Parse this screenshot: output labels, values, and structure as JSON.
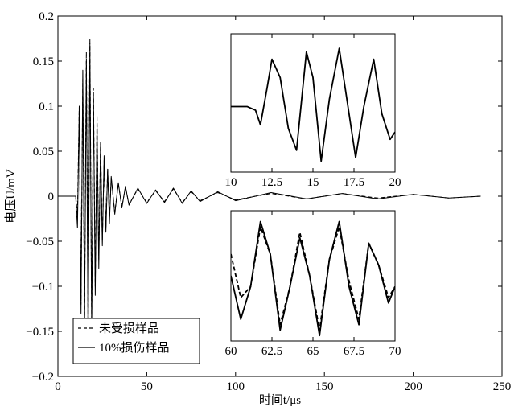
{
  "chart_data": [
    {
      "id": "main",
      "type": "line",
      "xlabel": "时间t/μs",
      "ylabel": "电压U/mV",
      "xlim": [
        0,
        250
      ],
      "ylim": [
        -0.2,
        0.2
      ],
      "xticks": [
        0,
        50,
        100,
        150,
        200,
        250
      ],
      "yticks": [
        -0.2,
        -0.15,
        -0.1,
        -0.05,
        0,
        0.05,
        0.1,
        0.15,
        0.2
      ],
      "xtick_labels": [
        "0",
        "50",
        "100",
        "150",
        "200",
        "250"
      ],
      "ytick_labels": [
        "−0.2",
        "−0.15",
        "−0.1",
        "−0.05",
        "0",
        "0.05",
        "0.1",
        "0.15",
        "0.2"
      ],
      "grid": false,
      "legend_position": "bottom-left",
      "series": [
        {
          "name": "未受损样品",
          "style": "dashed",
          "color": "#000000",
          "x": [
            0,
            10,
            11,
            12,
            13,
            14,
            15,
            16,
            17,
            18,
            19,
            20,
            21,
            22,
            23,
            24,
            25,
            26,
            27,
            28,
            29,
            30,
            32,
            34,
            36,
            38,
            40,
            45,
            50,
            55,
            60,
            65,
            70,
            75,
            80,
            90,
            100,
            120,
            140,
            160,
            180,
            200,
            220,
            238
          ],
          "y": [
            0,
            0,
            -0.02,
            0.1,
            -0.12,
            0.13,
            -0.14,
            0.16,
            -0.15,
            0.175,
            -0.14,
            0.12,
            -0.1,
            0.09,
            -0.07,
            0.06,
            -0.05,
            0.04,
            -0.035,
            0.03,
            -0.025,
            0.02,
            -0.018,
            0.014,
            -0.012,
            0.01,
            -0.009,
            0.008,
            -0.007,
            0.006,
            -0.006,
            0.008,
            -0.007,
            0.005,
            -0.005,
            0.004,
            -0.004,
            0.003,
            -0.003,
            0.003,
            -0.002,
            0.002,
            -0.002,
            0
          ]
        },
        {
          "name": "10%损伤样品",
          "style": "solid",
          "color": "#000000",
          "x": [
            0,
            10,
            11,
            12,
            13,
            14,
            15,
            16,
            17,
            18,
            19,
            20,
            21,
            22,
            23,
            24,
            25,
            26,
            27,
            28,
            29,
            30,
            32,
            34,
            36,
            38,
            40,
            45,
            50,
            55,
            60,
            65,
            70,
            75,
            80,
            90,
            100,
            120,
            140,
            160,
            180,
            200,
            220,
            238
          ],
          "y": [
            0,
            0,
            -0.035,
            0.1,
            -0.13,
            0.14,
            -0.14,
            0.15,
            -0.17,
            0.17,
            -0.15,
            0.11,
            -0.11,
            0.08,
            -0.08,
            0.06,
            -0.055,
            0.045,
            -0.04,
            0.03,
            -0.03,
            0.022,
            -0.02,
            0.015,
            -0.013,
            0.011,
            -0.01,
            0.009,
            -0.008,
            0.007,
            -0.007,
            0.009,
            -0.008,
            0.006,
            -0.006,
            0.005,
            -0.005,
            0.004,
            -0.003,
            0.003,
            -0.003,
            0.002,
            -0.002,
            0
          ]
        }
      ]
    },
    {
      "id": "inset-top",
      "type": "line",
      "xlim": [
        10,
        20
      ],
      "xticks": [
        10,
        12.5,
        15,
        17.5,
        20
      ],
      "xtick_labels": [
        "10",
        "12.5",
        "15",
        "17.5",
        "20"
      ],
      "ylim": [
        -0.18,
        0.2
      ],
      "series": [
        {
          "name": "",
          "style": "solid",
          "color": "#000000",
          "x": [
            10,
            11,
            11.5,
            11.8,
            12.2,
            12.5,
            13.0,
            13.5,
            14.0,
            14.6,
            15.0,
            15.5,
            16.0,
            16.6,
            17.1,
            17.6,
            18.1,
            18.7,
            19.2,
            19.7,
            20
          ],
          "y": [
            0,
            0,
            -0.01,
            -0.05,
            0.05,
            0.13,
            0.08,
            -0.06,
            -0.12,
            0.15,
            0.08,
            -0.15,
            0.02,
            0.16,
            0.01,
            -0.14,
            0.0,
            0.13,
            -0.02,
            -0.09,
            -0.07
          ]
        }
      ]
    },
    {
      "id": "inset-bottom",
      "type": "line",
      "xlim": [
        60,
        70
      ],
      "xticks": [
        60,
        62.5,
        65,
        67.5,
        70
      ],
      "xtick_labels": [
        "60",
        "62.5",
        "65",
        "67.5",
        "70"
      ],
      "ylim": [
        -0.012,
        0.012
      ],
      "series": [
        {
          "name": "未受损样品",
          "style": "dashed",
          "color": "#000000",
          "x": [
            60,
            60.6,
            61.2,
            61.8,
            62.4,
            63.0,
            63.6,
            64.2,
            64.8,
            65.4,
            66.0,
            66.6,
            67.2,
            67.8,
            68.4,
            69.0,
            69.6,
            70
          ],
          "y": [
            0.004,
            -0.004,
            -0.002,
            0.009,
            0.004,
            -0.009,
            -0.002,
            0.008,
            0.0,
            -0.01,
            0.003,
            0.009,
            -0.001,
            -0.008,
            0.006,
            0.002,
            -0.004,
            -0.002
          ]
        },
        {
          "name": "10%损伤样品",
          "style": "solid",
          "color": "#000000",
          "x": [
            60,
            60.6,
            61.2,
            61.8,
            62.4,
            63.0,
            63.6,
            64.2,
            64.8,
            65.4,
            66.0,
            66.6,
            67.2,
            67.8,
            68.4,
            69.0,
            69.6,
            70
          ],
          "y": [
            0.0,
            -0.008,
            -0.002,
            0.01,
            0.004,
            -0.01,
            -0.002,
            0.007,
            0.0,
            -0.011,
            0.003,
            0.01,
            -0.002,
            -0.009,
            0.006,
            0.002,
            -0.005,
            -0.002
          ]
        }
      ]
    }
  ]
}
